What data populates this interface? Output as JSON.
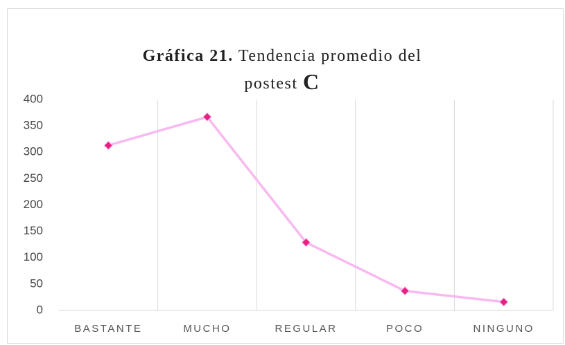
{
  "chart_data": {
    "type": "line",
    "title": [
      "Gráfica 21.",
      "Tendencia promedio del",
      "postest",
      "C"
    ],
    "categories": [
      "BASTANTE",
      "MUCHO",
      "REGULAR",
      "POCO",
      "NINGUNO"
    ],
    "series": [
      {
        "name": "",
        "color": "#f8b9f1",
        "marker_color": "#e8207f",
        "values": [
          313,
          367,
          129,
          37,
          16
        ]
      }
    ],
    "ylim": [
      0,
      400
    ],
    "yticks": [
      0,
      50,
      100,
      150,
      200,
      250,
      300,
      350,
      400
    ],
    "grid": false
  }
}
